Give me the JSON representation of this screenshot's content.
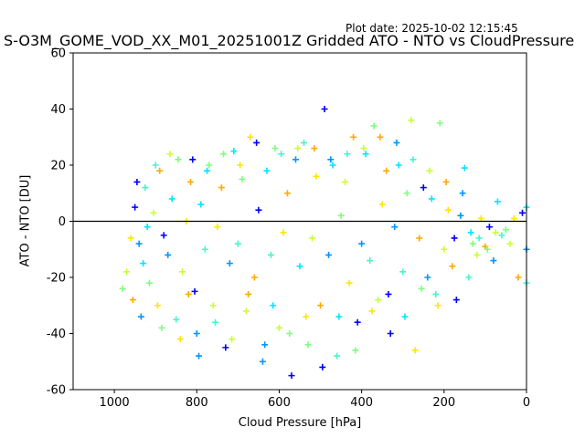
{
  "plot_date": "Plot date: 2025-10-02 12:15:45",
  "chart_data": {
    "type": "scatter",
    "title": "S-O3M_GOME_VOD_XX_M01_20251001Z Gridded ATO - NTO vs CloudPressure",
    "xlabel": "Cloud Pressure [hPa]",
    "ylabel": "ATO - NTO [DU]",
    "xlim": [
      1100,
      0
    ],
    "ylim": [
      -60,
      60
    ],
    "x_ticks": [
      1000,
      800,
      600,
      400,
      200,
      0
    ],
    "y_ticks": [
      -60,
      -40,
      -20,
      0,
      20,
      40,
      60
    ],
    "reference_line_y": 0,
    "marker": "plus",
    "colormap": [
      "#0000ff",
      "#0096ff",
      "#00e6ff",
      "#48f5c8",
      "#7dff7d",
      "#c8ff32",
      "#ffe600",
      "#ffaa00"
    ],
    "points": [
      [
        950,
        5
      ],
      [
        940,
        -8
      ],
      [
        930,
        -15
      ],
      [
        925,
        12
      ],
      [
        915,
        -22
      ],
      [
        905,
        3
      ],
      [
        895,
        -30
      ],
      [
        890,
        18
      ],
      [
        880,
        -5
      ],
      [
        870,
        -12
      ],
      [
        860,
        8
      ],
      [
        850,
        -35
      ],
      [
        845,
        22
      ],
      [
        835,
        -18
      ],
      [
        825,
        0
      ],
      [
        815,
        14
      ],
      [
        805,
        -25
      ],
      [
        800,
        -40
      ],
      [
        790,
        6
      ],
      [
        780,
        -10
      ],
      [
        770,
        20
      ],
      [
        760,
        -30
      ],
      [
        750,
        -2
      ],
      [
        740,
        12
      ],
      [
        730,
        -45
      ],
      [
        720,
        -15
      ],
      [
        710,
        25
      ],
      [
        700,
        -8
      ],
      [
        690,
        15
      ],
      [
        680,
        -32
      ],
      [
        670,
        30
      ],
      [
        660,
        -20
      ],
      [
        650,
        4
      ],
      [
        640,
        -50
      ],
      [
        630,
        18
      ],
      [
        620,
        -12
      ],
      [
        610,
        26
      ],
      [
        600,
        -38
      ],
      [
        590,
        -4
      ],
      [
        580,
        10
      ],
      [
        570,
        -55
      ],
      [
        560,
        22
      ],
      [
        550,
        -16
      ],
      [
        540,
        28
      ],
      [
        530,
        -44
      ],
      [
        520,
        -6
      ],
      [
        510,
        16
      ],
      [
        500,
        -30
      ],
      [
        490,
        40
      ],
      [
        480,
        -12
      ],
      [
        470,
        20
      ],
      [
        460,
        -48
      ],
      [
        450,
        2
      ],
      [
        440,
        14
      ],
      [
        430,
        -22
      ],
      [
        420,
        30
      ],
      [
        410,
        -36
      ],
      [
        400,
        -8
      ],
      [
        390,
        24
      ],
      [
        380,
        -14
      ],
      [
        370,
        34
      ],
      [
        360,
        -28
      ],
      [
        350,
        6
      ],
      [
        340,
        18
      ],
      [
        330,
        -40
      ],
      [
        320,
        -2
      ],
      [
        310,
        20
      ],
      [
        300,
        -18
      ],
      [
        290,
        10
      ],
      [
        280,
        36
      ],
      [
        270,
        -46
      ],
      [
        260,
        -6
      ],
      [
        250,
        12
      ],
      [
        240,
        -20
      ],
      [
        230,
        8
      ],
      [
        220,
        -26
      ],
      [
        210,
        35
      ],
      [
        200,
        -10
      ],
      [
        190,
        4
      ],
      [
        180,
        -16
      ],
      [
        170,
        -28
      ],
      [
        160,
        2
      ],
      [
        150,
        19
      ],
      [
        140,
        -20
      ],
      [
        130,
        -8
      ],
      [
        120,
        -12
      ],
      [
        110,
        1
      ],
      [
        100,
        -9
      ],
      [
        90,
        -2
      ],
      [
        80,
        -14
      ],
      [
        70,
        7
      ],
      [
        60,
        -5
      ],
      [
        50,
        -3
      ],
      [
        40,
        -8
      ],
      [
        30,
        1
      ],
      [
        20,
        -20
      ],
      [
        10,
        3
      ],
      [
        0,
        -10
      ],
      [
        0,
        5
      ],
      [
        0,
        -22
      ],
      [
        980,
        -24
      ],
      [
        970,
        -18
      ],
      [
        960,
        -6
      ],
      [
        955,
        -28
      ],
      [
        945,
        14
      ],
      [
        935,
        -34
      ],
      [
        920,
        -2
      ],
      [
        900,
        20
      ],
      [
        885,
        -38
      ],
      [
        865,
        24
      ],
      [
        840,
        -42
      ],
      [
        820,
        -26
      ],
      [
        810,
        22
      ],
      [
        795,
        -48
      ],
      [
        775,
        18
      ],
      [
        755,
        -36
      ],
      [
        735,
        24
      ],
      [
        715,
        -42
      ],
      [
        695,
        20
      ],
      [
        675,
        -26
      ],
      [
        655,
        28
      ],
      [
        635,
        -44
      ],
      [
        615,
        -30
      ],
      [
        595,
        24
      ],
      [
        575,
        -40
      ],
      [
        555,
        26
      ],
      [
        535,
        -34
      ],
      [
        515,
        26
      ],
      [
        495,
        -52
      ],
      [
        475,
        22
      ],
      [
        455,
        -34
      ],
      [
        435,
        24
      ],
      [
        415,
        -46
      ],
      [
        395,
        26
      ],
      [
        375,
        -32
      ],
      [
        355,
        30
      ],
      [
        335,
        -26
      ],
      [
        315,
        28
      ],
      [
        295,
        -34
      ],
      [
        275,
        22
      ],
      [
        255,
        -24
      ],
      [
        235,
        18
      ],
      [
        215,
        -30
      ],
      [
        195,
        14
      ],
      [
        175,
        -6
      ],
      [
        155,
        10
      ],
      [
        135,
        -4
      ],
      [
        115,
        -6
      ],
      [
        95,
        -10
      ],
      [
        75,
        -4
      ]
    ]
  }
}
